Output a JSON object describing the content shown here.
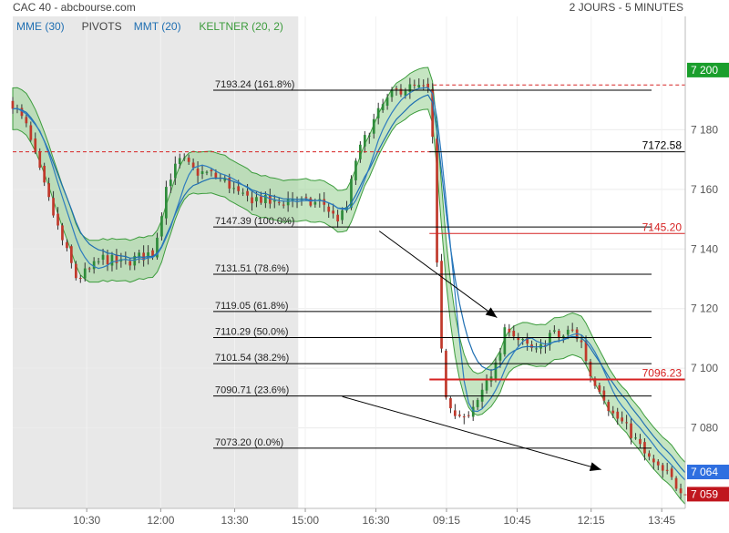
{
  "header": {
    "title": "CAC 40 - abcbourse.com",
    "period": "2 JOURS - 5 MINUTES"
  },
  "legend": [
    {
      "label": "MME (30)",
      "color": "#1f6fb2"
    },
    {
      "label": "PIVOTS",
      "color": "#444444"
    },
    {
      "label": "MMT (20)",
      "color": "#1f6fb2"
    },
    {
      "label": "KELTNER (20, 2)",
      "color": "#3d9c3d"
    }
  ],
  "colors": {
    "up": "#2e8b3a",
    "down": "#c0392b",
    "keltner_fill": "#9fd39a",
    "keltner_line": "#3d9c3d",
    "ema": "#1f6fb2",
    "sma": "#2d7bbf",
    "prev_day_bg": "#e8e8e8",
    "fib": "#000000",
    "pivot_red": "#d62222",
    "last_price_bg": "#2f6fe0",
    "close_bg": "#c0161e",
    "ref_bg": "#1a9e2c"
  },
  "chart_data": {
    "type": "candlestick",
    "title": "CAC 40",
    "ylim": [
      7053,
      7218
    ],
    "y_ticks": [
      "7 080",
      "7 100",
      "7 120",
      "7 140",
      "7 160",
      "7 180"
    ],
    "x_ticks": [
      "10:30",
      "12:00",
      "13:30",
      "15:00",
      "16:30",
      "09:15",
      "10:45",
      "12:15",
      "13:45"
    ],
    "prev_session_shaded": true,
    "fibonacci": [
      {
        "label": "7193.24  (161.8%)",
        "value": 7193.24
      },
      {
        "label": "7147.39  (100.0%)",
        "value": 7147.39
      },
      {
        "label": "7131.51  (78.6%)",
        "value": 7131.51
      },
      {
        "label": "7119.05  (61.8%)",
        "value": 7119.05
      },
      {
        "label": "7110.29  (50.0%)",
        "value": 7110.29
      },
      {
        "label": "7101.54  (38.2%)",
        "value": 7101.54
      },
      {
        "label": "7090.71  (23.6%)",
        "value": 7090.71
      },
      {
        "label": "7073.20  (0.0%)",
        "value": 7073.2
      }
    ],
    "pivots": [
      {
        "label": "7172.58",
        "value": 7172.58,
        "color": "#000000"
      },
      {
        "label": "7145.20",
        "value": 7145.2,
        "color": "#d62222"
      },
      {
        "label": "7096.23",
        "value": 7096.23,
        "color": "#d62222"
      }
    ],
    "price_boxes": [
      {
        "label": "7 200",
        "value": 7200,
        "kind": "ref"
      },
      {
        "label": "7 064",
        "value": 7064,
        "kind": "last"
      },
      {
        "label": "7 059",
        "value": 7059,
        "kind": "close"
      }
    ],
    "ref_dashed_level": 7195,
    "prev_close_dashed_level": 7172.58,
    "arrows": [
      {
        "from": [
          0.545,
          7146
        ],
        "to": [
          0.72,
          7117
        ]
      },
      {
        "from": [
          0.49,
          7090.5
        ],
        "to": [
          0.875,
          7066
        ]
      }
    ],
    "anchors": [
      [
        0,
        7189
      ],
      [
        0.02,
        7181
      ],
      [
        0.045,
        7162
      ],
      [
        0.07,
        7145
      ],
      [
        0.095,
        7130
      ],
      [
        0.115,
        7133
      ],
      [
        0.135,
        7137
      ],
      [
        0.16,
        7135
      ],
      [
        0.185,
        7137
      ],
      [
        0.21,
        7139
      ],
      [
        0.23,
        7163
      ],
      [
        0.25,
        7170
      ],
      [
        0.27,
        7166
      ],
      [
        0.295,
        7165
      ],
      [
        0.32,
        7162
      ],
      [
        0.34,
        7157
      ],
      [
        0.365,
        7157
      ],
      [
        0.39,
        7155
      ],
      [
        0.415,
        7157
      ],
      [
        0.44,
        7155
      ],
      [
        0.46,
        7156
      ],
      [
        0.48,
        7150
      ],
      [
        0.495,
        7152
      ],
      [
        0.51,
        7170
      ],
      [
        0.53,
        7180
      ],
      [
        0.55,
        7188
      ],
      [
        0.565,
        7192
      ],
      [
        0.58,
        7194
      ],
      [
        0.6,
        7194
      ],
      [
        0.622,
        7193
      ],
      [
        0.628,
        7148
      ],
      [
        0.636,
        7108
      ],
      [
        0.645,
        7090
      ],
      [
        0.66,
        7085
      ],
      [
        0.675,
        7082
      ],
      [
        0.69,
        7088
      ],
      [
        0.705,
        7097
      ],
      [
        0.72,
        7101
      ],
      [
        0.735,
        7115
      ],
      [
        0.75,
        7110
      ],
      [
        0.765,
        7107
      ],
      [
        0.78,
        7105
      ],
      [
        0.8,
        7112
      ],
      [
        0.815,
        7110
      ],
      [
        0.83,
        7113
      ],
      [
        0.845,
        7109
      ],
      [
        0.86,
        7097
      ],
      [
        0.875,
        7093
      ],
      [
        0.89,
        7085
      ],
      [
        0.905,
        7082
      ],
      [
        0.92,
        7078
      ],
      [
        0.94,
        7071
      ],
      [
        0.96,
        7066
      ],
      [
        0.975,
        7064
      ],
      [
        0.985,
        7061
      ],
      [
        1.0,
        7059
      ]
    ],
    "candle_count": 150,
    "session_split": 0.625,
    "keltner_width": 7
  }
}
